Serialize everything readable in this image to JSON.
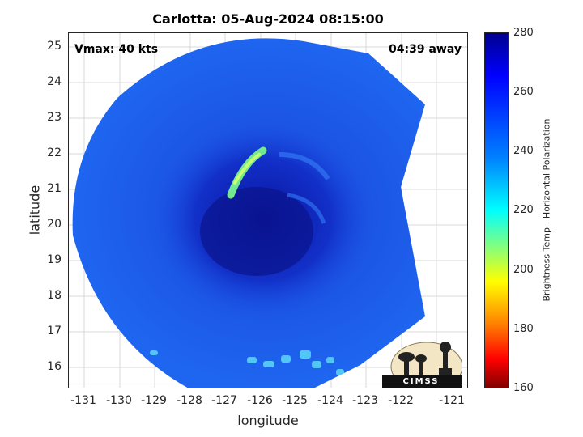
{
  "title": "Carlotta: 05-Aug-2024 08:15:00",
  "overlays": {
    "vmax": "Vmax: 40 kts",
    "time_away": "04:39 away"
  },
  "axes": {
    "xlabel": "longitude",
    "ylabel": "latitude",
    "xticks": [
      "-131",
      "-130",
      "-129",
      "-128",
      "-127",
      "-126",
      "-125",
      "-124",
      "-123",
      "-122",
      "-121"
    ],
    "yticks": [
      "25",
      "24",
      "23",
      "22",
      "21",
      "20",
      "19",
      "18",
      "17",
      "16"
    ]
  },
  "colorbar": {
    "label": "Brightness Temp - Horizontal Polarization",
    "ticks": [
      "280",
      "260",
      "240",
      "220",
      "200",
      "180",
      "160"
    ],
    "range": [
      160,
      280
    ],
    "colormap": "jet"
  },
  "logo": {
    "text": "CIMSS"
  },
  "colors": {
    "swath_base": "#1a55e8",
    "core": "#0a1aa0",
    "warm_band": "#7de0a0",
    "background": "#ffffff"
  }
}
